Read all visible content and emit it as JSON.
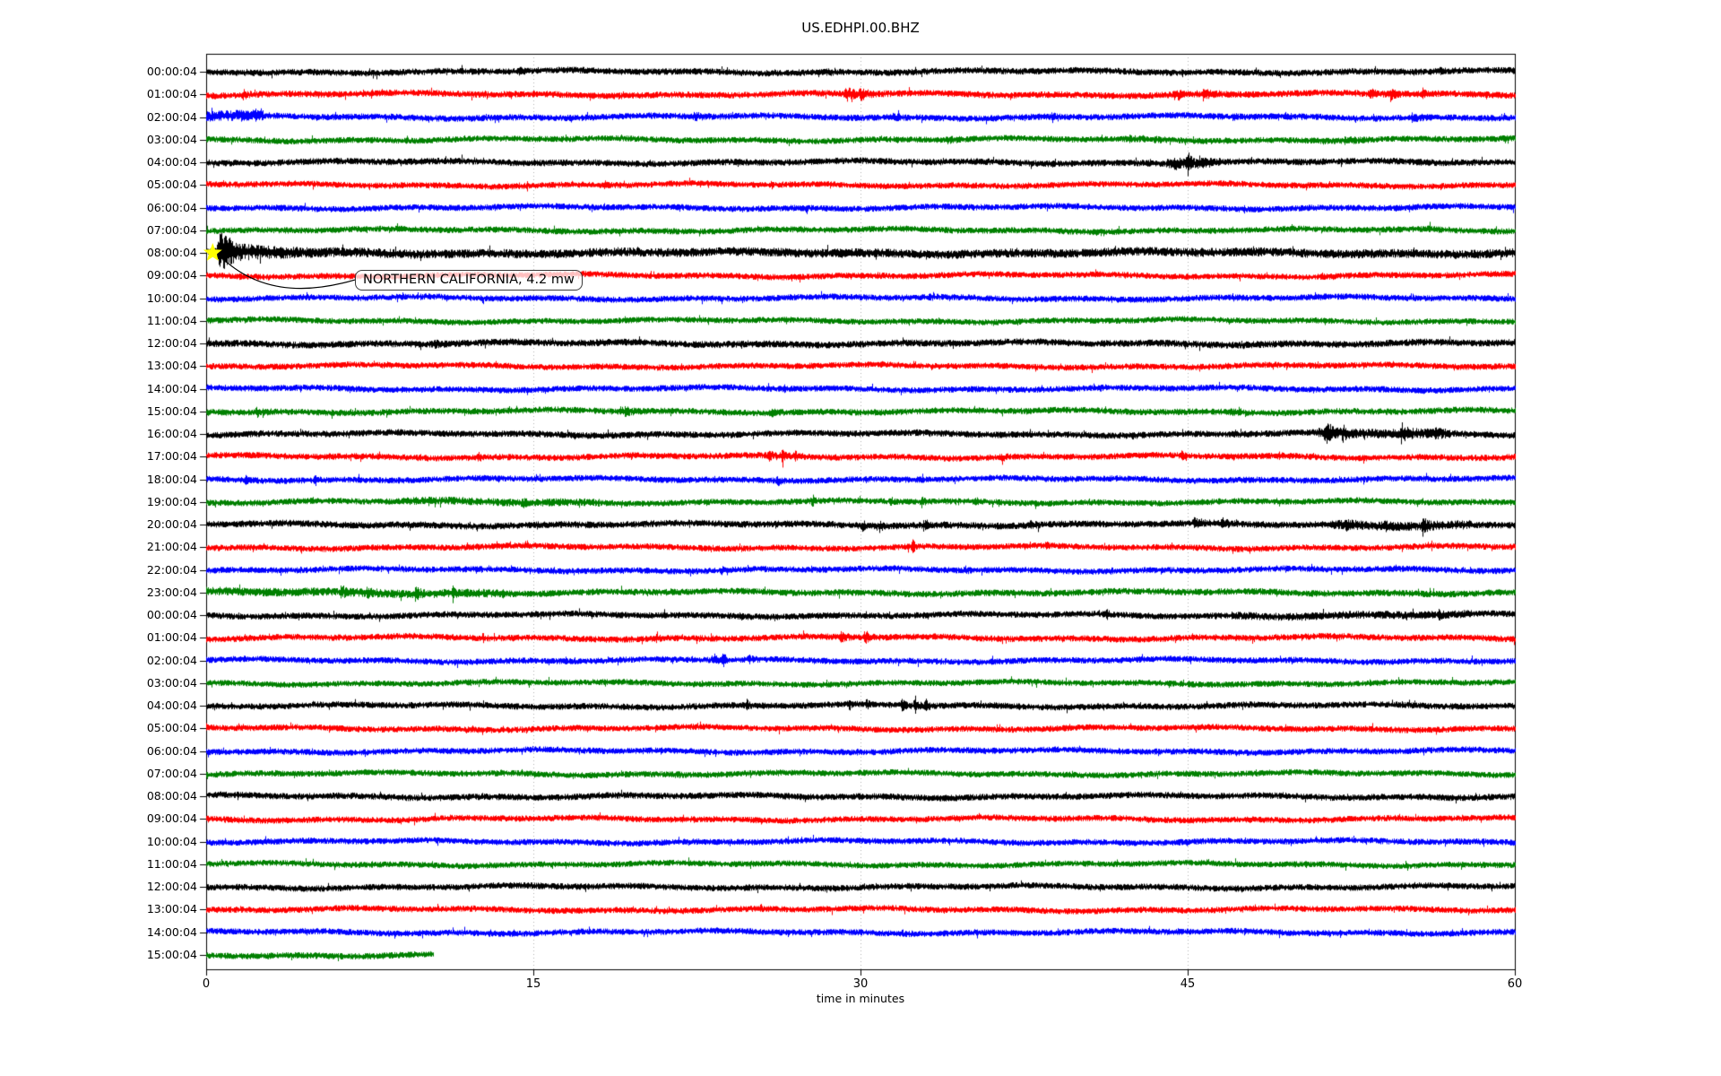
{
  "figure": {
    "title": "US.EDHPI.00.BHZ"
  },
  "chart_data": {
    "type": "line",
    "subtype": "seismogram-dayplot",
    "title": "US.EDHPI.00.BHZ",
    "xlabel": "time in minutes",
    "xlim": [
      0,
      60
    ],
    "x_ticks": [
      "0",
      "15",
      "30",
      "45",
      "60"
    ],
    "grid_minutes": [
      15,
      30,
      45
    ],
    "grid_style": "dotted-vertical",
    "legend": "none",
    "trace_color_cycle": [
      "#000000",
      "#ff0000",
      "#0000ff",
      "#008000"
    ],
    "annotation": {
      "text": "NORTHERN CALIFORNIA, 4.2 mw",
      "attached_row_label": "08:00:04",
      "attached_row_index": 8,
      "event_time_min": 0.55,
      "marker": "yellow-star",
      "marker_color": "#ffff00",
      "marker_time_min": 0.3
    },
    "rows": [
      {
        "label": "00:00:04",
        "base_amp": 3.4,
        "events": [
          {
            "t": 14.3,
            "a": 0.6,
            "d": 0.25
          },
          {
            "t": 28.5,
            "a": 0.45,
            "d": 0.2
          },
          {
            "t": 56.6,
            "a": 0.6,
            "d": 0.07
          }
        ]
      },
      {
        "label": "01:00:04",
        "base_amp": 3.4,
        "events": [
          {
            "t": 1.7,
            "a": 1.1,
            "d": 0.08
          },
          {
            "t": 29.3,
            "a": 1.6,
            "d": 0.4
          },
          {
            "t": 30.0,
            "a": 1.0,
            "d": 0.3
          },
          {
            "t": 44.4,
            "a": 1.5,
            "d": 0.2
          },
          {
            "t": 45.7,
            "a": 1.2,
            "d": 0.25
          },
          {
            "t": 53.4,
            "a": 1.1,
            "d": 0.15
          },
          {
            "t": 54.3,
            "a": 1.5,
            "d": 0.15
          },
          {
            "t": 55.8,
            "a": 1.3,
            "d": 0.06
          }
        ]
      },
      {
        "label": "02:00:04",
        "base_amp": 3.3,
        "events": [
          {
            "t0": 0,
            "t1": 2.6,
            "a": 0.7
          },
          {
            "t": 2.3,
            "a": 1.3,
            "d": 0.07
          },
          {
            "t": 22.4,
            "a": 0.7,
            "d": 0.3
          },
          {
            "t": 31.5,
            "a": 0.6,
            "d": 0.3
          },
          {
            "t": 38.8,
            "a": 1.0,
            "d": 0.06
          },
          {
            "t": 47.1,
            "a": 0.6,
            "d": 0.2
          },
          {
            "t": 49.5,
            "a": 0.6,
            "d": 0.15
          },
          {
            "t": 55.3,
            "a": 0.7,
            "d": 0.3
          }
        ]
      },
      {
        "label": "03:00:04",
        "base_amp": 3.2,
        "events": [
          {
            "t": 34.0,
            "a": 0.5,
            "d": 0.4
          },
          {
            "t": 42.3,
            "a": 0.5,
            "d": 0.3
          },
          {
            "t": 43.5,
            "a": 0.4,
            "d": 0.3
          },
          {
            "t": 52.2,
            "a": 0.7,
            "d": 0.4
          }
        ]
      },
      {
        "label": "04:00:04",
        "base_amp": 3.4,
        "events": [
          {
            "t": 44.4,
            "a": 1.5,
            "d": 0.15
          },
          {
            "t": 45.0,
            "a": 2.8,
            "d": 0.12
          },
          {
            "t": 45.5,
            "a": 1.2,
            "d": 0.2
          },
          {
            "t0": 44,
            "t1": 46.5,
            "a": 0.4
          }
        ]
      },
      {
        "label": "05:00:04",
        "base_amp": 3.2,
        "events": [
          {
            "t": 18.3,
            "a": 0.6,
            "d": 0.05
          }
        ]
      },
      {
        "label": "06:00:04",
        "base_amp": 3.2,
        "events": []
      },
      {
        "label": "07:00:04",
        "base_amp": 3.2,
        "events": [
          {
            "t": 56.0,
            "a": 0.35,
            "d": 0.4
          }
        ]
      },
      {
        "label": "08:00:04",
        "base_amp": 3.3,
        "events": [
          {
            "t": 0.55,
            "a": 4.5,
            "d": 0.45
          },
          {
            "t": 0.7,
            "a": 1.8,
            "d": 2.2
          },
          {
            "t0": 0.55,
            "t1": 60,
            "a": 0.4
          }
        ]
      },
      {
        "label": "09:00:04",
        "base_amp": 3.2,
        "events": [
          {
            "t": 30.8,
            "a": 0.35,
            "d": 0.2
          }
        ]
      },
      {
        "label": "10:00:04",
        "base_amp": 3.2,
        "events": [
          {
            "t": 33.2,
            "a": 0.45,
            "d": 0.15
          }
        ]
      },
      {
        "label": "11:00:04",
        "base_amp": 3.1,
        "events": []
      },
      {
        "label": "12:00:04",
        "base_amp": 3.6,
        "events": [
          {
            "t": 10.5,
            "a": 0.35,
            "d": 0.3
          },
          {
            "t": 24.5,
            "a": 0.35,
            "d": 0.3
          }
        ]
      },
      {
        "label": "13:00:04",
        "base_amp": 3.2,
        "events": []
      },
      {
        "label": "14:00:04",
        "base_amp": 3.2,
        "events": [
          {
            "t": 26.5,
            "a": 0.45,
            "d": 0.08
          },
          {
            "t": 41.0,
            "a": 0.45,
            "d": 0.08
          }
        ]
      },
      {
        "label": "15:00:04",
        "base_amp": 3.3,
        "events": [
          {
            "t": 2.3,
            "a": 0.9,
            "d": 0.3
          },
          {
            "t": 19.2,
            "a": 0.8,
            "d": 0.3
          },
          {
            "t": 25.9,
            "a": 0.7,
            "d": 0.25
          },
          {
            "t": 47.0,
            "a": 0.4,
            "d": 0.2
          }
        ]
      },
      {
        "label": "16:00:04",
        "base_amp": 3.4,
        "events": [
          {
            "t": 42.5,
            "a": 0.7,
            "d": 0.08
          },
          {
            "t": 51.3,
            "a": 2.5,
            "d": 0.3
          },
          {
            "t": 52.1,
            "a": 1.6,
            "d": 0.15
          },
          {
            "t": 54.8,
            "a": 2.1,
            "d": 0.25
          },
          {
            "t": 56.4,
            "a": 1.0,
            "d": 0.2
          },
          {
            "t0": 51,
            "t1": 57,
            "a": 0.45
          }
        ]
      },
      {
        "label": "17:00:04",
        "base_amp": 3.3,
        "events": [
          {
            "t": 12.5,
            "a": 1.0,
            "d": 0.08
          },
          {
            "t": 25.8,
            "a": 1.2,
            "d": 0.12
          },
          {
            "t": 26.4,
            "a": 1.5,
            "d": 0.12
          },
          {
            "t": 27.0,
            "a": 1.1,
            "d": 0.15
          },
          {
            "t": 36.5,
            "a": 0.6,
            "d": 0.12
          },
          {
            "t": 44.7,
            "a": 1.1,
            "d": 0.1
          },
          {
            "t": 49.2,
            "a": 0.7,
            "d": 0.15
          }
        ]
      },
      {
        "label": "18:00:04",
        "base_amp": 3.2,
        "events": [
          {
            "t": 1.8,
            "a": 0.9,
            "d": 0.15
          },
          {
            "t": 5.0,
            "a": 1.0,
            "d": 0.1
          },
          {
            "t": 23.3,
            "a": 0.5,
            "d": 0.1
          },
          {
            "t": 26.2,
            "a": 1.3,
            "d": 0.1
          }
        ]
      },
      {
        "label": "19:00:04",
        "base_amp": 3.2,
        "events": [
          {
            "t0": 9,
            "t1": 18,
            "a": 0.25
          },
          {
            "t": 14.5,
            "a": 0.9,
            "d": 0.1
          },
          {
            "t": 27.8,
            "a": 1.4,
            "d": 0.07
          },
          {
            "t": 31.4,
            "a": 0.8,
            "d": 0.1
          },
          {
            "t": 32.8,
            "a": 1.8,
            "d": 0.07
          },
          {
            "t": 35.3,
            "a": 0.6,
            "d": 0.1
          }
        ]
      },
      {
        "label": "20:00:04",
        "base_amp": 3.5,
        "events": [
          {
            "t": 30.1,
            "a": 1.2,
            "d": 0.08
          },
          {
            "t": 30.9,
            "a": 0.9,
            "d": 0.15
          },
          {
            "t": 32.9,
            "a": 1.2,
            "d": 0.1
          },
          {
            "t": 37.8,
            "a": 0.7,
            "d": 0.15
          },
          {
            "t": 45.3,
            "a": 1.1,
            "d": 0.25
          },
          {
            "t": 46.6,
            "a": 1.0,
            "d": 0.2
          },
          {
            "t": 52.3,
            "a": 1.1,
            "d": 0.2
          },
          {
            "t": 54.0,
            "a": 0.8,
            "d": 0.2
          },
          {
            "t": 55.8,
            "a": 1.3,
            "d": 0.25
          },
          {
            "t0": 51.5,
            "t1": 58,
            "a": 0.35
          }
        ]
      },
      {
        "label": "21:00:04",
        "base_amp": 3.2,
        "events": [
          {
            "t": 32.4,
            "a": 1.5,
            "d": 0.07
          },
          {
            "t": 38.5,
            "a": 0.5,
            "d": 0.1
          }
        ]
      },
      {
        "label": "22:00:04",
        "base_amp": 3.2,
        "events": [
          {
            "t": 23.6,
            "a": 0.8,
            "d": 0.1
          },
          {
            "t": 34.8,
            "a": 0.8,
            "d": 0.1
          },
          {
            "t": 41.5,
            "a": 0.5,
            "d": 0.1
          }
        ]
      },
      {
        "label": "23:00:04",
        "base_amp": 3.4,
        "events": [
          {
            "t0": 0,
            "t1": 13.5,
            "a": 0.3
          },
          {
            "t": 6.2,
            "a": 1.1,
            "d": 0.2
          },
          {
            "t": 7.4,
            "a": 1.5,
            "d": 0.18
          },
          {
            "t": 9.6,
            "a": 1.3,
            "d": 0.2
          },
          {
            "t": 11.3,
            "a": 2.3,
            "d": 0.08
          },
          {
            "t": 13.5,
            "a": 0.7,
            "d": 0.2
          }
        ]
      },
      {
        "label": "00:00:04",
        "base_amp": 3.3,
        "events": [
          {
            "t": 24.5,
            "a": 0.4,
            "d": 0.15
          },
          {
            "t": 41.3,
            "a": 1.0,
            "d": 0.08
          },
          {
            "t": 56.5,
            "a": 0.7,
            "d": 0.15
          },
          {
            "t0": 47,
            "t1": 58,
            "a": 0.25
          }
        ]
      },
      {
        "label": "01:00:04",
        "base_amp": 3.3,
        "events": [
          {
            "t": 12.7,
            "a": 0.9,
            "d": 0.07
          },
          {
            "t": 20.6,
            "a": 0.6,
            "d": 0.15
          },
          {
            "t": 29.1,
            "a": 1.2,
            "d": 0.2
          },
          {
            "t": 30.2,
            "a": 1.5,
            "d": 0.2
          }
        ]
      },
      {
        "label": "02:00:04",
        "base_amp": 3.2,
        "events": [
          {
            "t": 23.3,
            "a": 1.2,
            "d": 0.12
          },
          {
            "t": 23.7,
            "a": 1.6,
            "d": 0.1
          },
          {
            "t": 24.9,
            "a": 1.3,
            "d": 0.12
          }
        ]
      },
      {
        "label": "03:00:04",
        "base_amp": 3.1,
        "events": []
      },
      {
        "label": "04:00:04",
        "base_amp": 3.3,
        "events": [
          {
            "t": 24.8,
            "a": 1.4,
            "d": 0.06
          },
          {
            "t": 29.5,
            "a": 1.2,
            "d": 0.05
          },
          {
            "t": 30.3,
            "a": 1.1,
            "d": 0.05
          },
          {
            "t": 31.9,
            "a": 1.3,
            "d": 0.15
          },
          {
            "t": 32.5,
            "a": 2.6,
            "d": 0.1
          },
          {
            "t": 33.0,
            "a": 1.2,
            "d": 0.12
          }
        ]
      },
      {
        "label": "05:00:04",
        "base_amp": 3.2,
        "events": []
      },
      {
        "label": "06:00:04",
        "base_amp": 3.2,
        "events": []
      },
      {
        "label": "07:00:04",
        "base_amp": 3.2,
        "events": [
          {
            "t": 21.5,
            "a": 0.45,
            "d": 0.2
          }
        ]
      },
      {
        "label": "08:00:04",
        "base_amp": 3.4,
        "events": []
      },
      {
        "label": "09:00:04",
        "base_amp": 3.2,
        "events": []
      },
      {
        "label": "10:00:04",
        "base_amp": 3.2,
        "events": []
      },
      {
        "label": "11:00:04",
        "base_amp": 3.1,
        "events": []
      },
      {
        "label": "12:00:04",
        "base_amp": 3.3,
        "events": []
      },
      {
        "label": "13:00:04",
        "base_amp": 3.2,
        "events": []
      },
      {
        "label": "14:00:04",
        "base_amp": 3.2,
        "events": []
      },
      {
        "label": "15:00:04",
        "base_amp": 3.3,
        "partial_end_min": 10.4,
        "events": []
      }
    ]
  }
}
